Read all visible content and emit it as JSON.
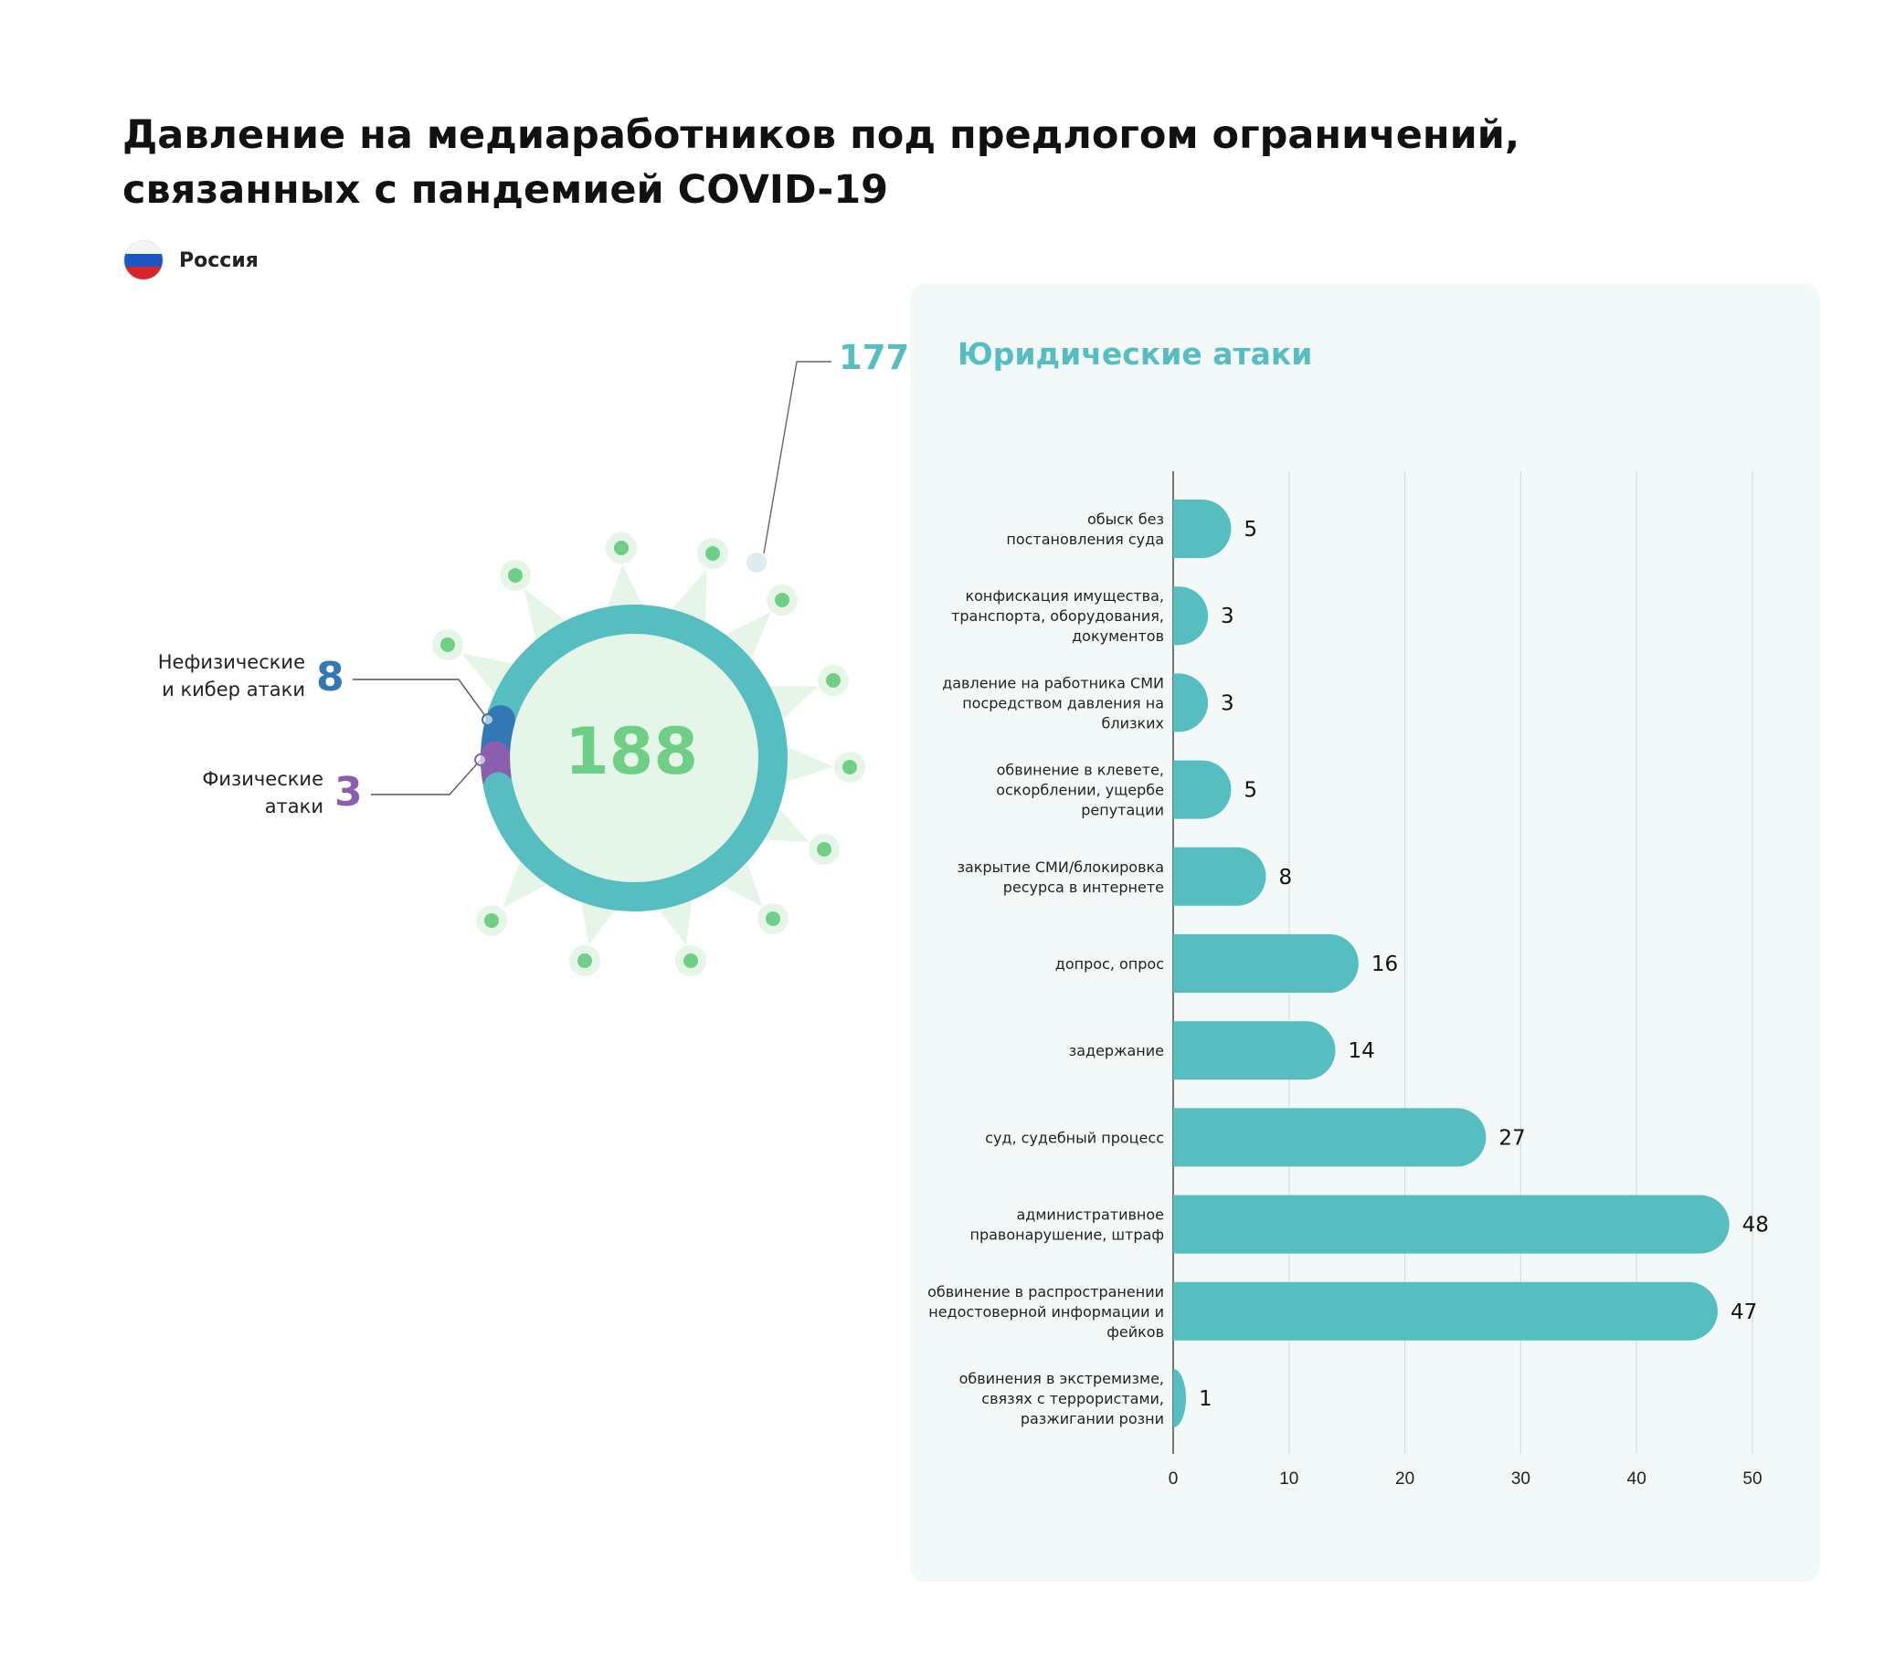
{
  "title_line1": "Давление на медиаработников под предлогом ограничений,",
  "title_line2": "связанных с пандемией COVID-19",
  "country": "Россия",
  "colors": {
    "legal": "#56bec0",
    "nonphysical": "#3278b4",
    "physical": "#8a5fb0",
    "total": "#6fcf86",
    "panel_bg": "#f3f9f9"
  },
  "totals": {
    "total": "188",
    "legal": "177",
    "nonphysical_label_line1": "Нефизические",
    "nonphysical_label_line2": "и кибер атаки",
    "nonphysical": "8",
    "physical_label_line1": "Физические",
    "physical_label_line2": "атаки",
    "physical": "3"
  },
  "chart_data": {
    "type": "bar",
    "orientation": "horizontal",
    "title": "Юридические атаки",
    "categories": [
      "обыск без постановления суда",
      "конфискация имущества, транспорта, оборудования, документов",
      "давление на работника СМИ посредством давления на близких",
      "обвинение в клевете, оскорблении, ущербе репутации",
      "закрытие СМИ/блокировка ресурса в интернете",
      "допрос, опрос",
      "задержание",
      "суд, судебный процесс",
      "административное правонарушение, штраф",
      "обвинение в распространении недостоверной информации и фейков",
      "обвинения в экстремизме, связях с террористами, разжигании розни"
    ],
    "label_lines": [
      [
        "обыск без",
        "постановления суда"
      ],
      [
        "конфискация имущества,",
        "транспорта, оборудования,",
        "документов"
      ],
      [
        "давление на работника СМИ",
        "посредством давления на",
        "близких"
      ],
      [
        "обвинение в клевете,",
        "оскорблении, ущербе",
        "репутации"
      ],
      [
        "закрытие СМИ/блокировка",
        "ресурса в интернете"
      ],
      [
        "допрос, опрос"
      ],
      [
        "задержание"
      ],
      [
        "суд, судебный процесс"
      ],
      [
        "административное",
        "правонарушение, штраф"
      ],
      [
        "обвинение в распространении",
        "недостоверной информации и",
        "фейков"
      ],
      [
        "обвинения в экстремизме,",
        "связях с террористами,",
        "разжигании розни"
      ]
    ],
    "values": [
      5,
      3,
      3,
      5,
      8,
      16,
      14,
      27,
      48,
      47,
      1
    ],
    "xlim": [
      0,
      50
    ],
    "xticks": [
      0,
      10,
      20,
      30,
      40,
      50
    ],
    "grid": true,
    "color": "#56bec0"
  }
}
